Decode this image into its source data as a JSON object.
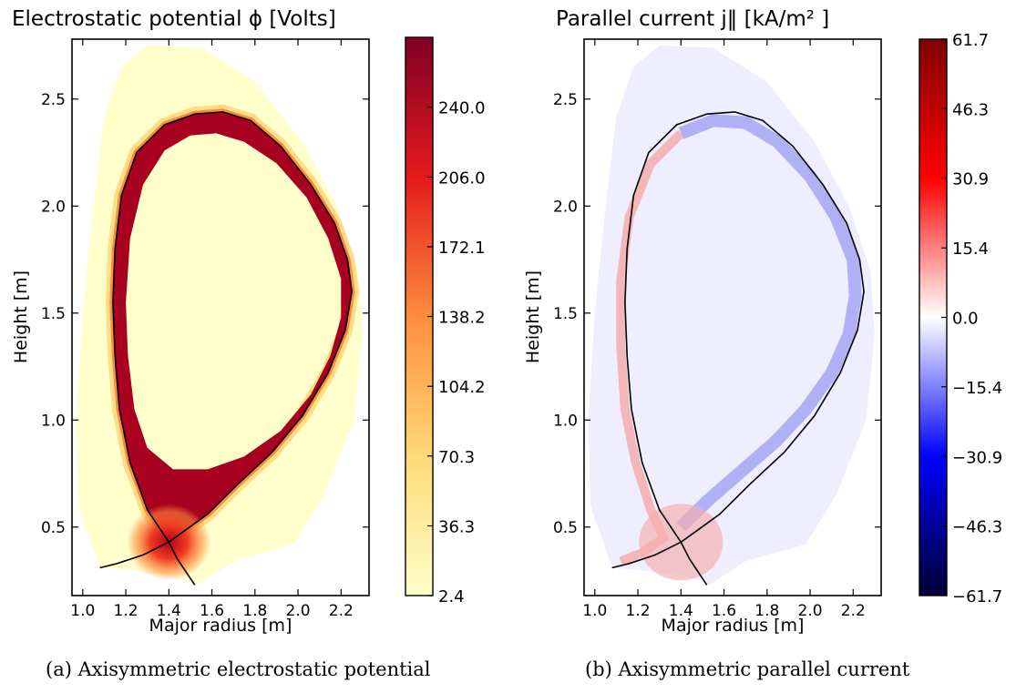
{
  "chart_data": [
    {
      "type": "heatmap",
      "title": "Electrostatic potential ϕ [Volts]",
      "xlabel": "Major radius [m]",
      "ylabel": "Height [m]",
      "xlim": [
        0.95,
        2.33
      ],
      "ylim": [
        0.18,
        2.78
      ],
      "xticks": [
        "1.0",
        "1.2",
        "1.4",
        "1.6",
        "1.8",
        "2.0",
        "2.2"
      ],
      "yticks": [
        "0.5",
        "1.0",
        "1.5",
        "2.0",
        "2.5"
      ],
      "colorbar": {
        "min": 2.4,
        "max": 274,
        "ticks": [
          "2.4",
          "36.3",
          "70.3",
          "104.2",
          "138.2",
          "172.1",
          "206.0",
          "240.0"
        ],
        "colormap": "YlOrRd",
        "colors": [
          "#ffffcc",
          "#fed976",
          "#fd8d3c",
          "#e31a1c",
          "#800026"
        ]
      },
      "caption": "(a) Axisymmetric electrostatic potential",
      "features": {
        "separatrix_color": "#000000",
        "confined_region_value": 240.0,
        "background_value": 20.0
      }
    },
    {
      "type": "heatmap",
      "title": "Parallel current j‖ [kA/m² ]",
      "xlabel": "Major radius [m]",
      "ylabel": "Height [m]",
      "xlim": [
        0.95,
        2.33
      ],
      "ylim": [
        0.18,
        2.78
      ],
      "xticks": [
        "1.0",
        "1.2",
        "1.4",
        "1.6",
        "1.8",
        "2.0",
        "2.2"
      ],
      "yticks": [
        "0.5",
        "1.0",
        "1.5",
        "2.0",
        "2.5"
      ],
      "colorbar": {
        "min": -61.7,
        "max": 61.7,
        "ticks": [
          "−61.7",
          "−46.3",
          "−30.9",
          "−15.4",
          "0.0",
          "15.4",
          "30.9",
          "46.3",
          "61.7"
        ],
        "colormap": "seismic",
        "colors": [
          "#000033",
          "#0000ff",
          "#ffffff",
          "#ff0000",
          "#7f0000"
        ]
      },
      "caption": "(b) Axisymmetric parallel current",
      "features": {
        "separatrix_color": "#000000",
        "edge_value_outboard": -10.0,
        "edge_value_inboard": 8.0
      }
    }
  ]
}
